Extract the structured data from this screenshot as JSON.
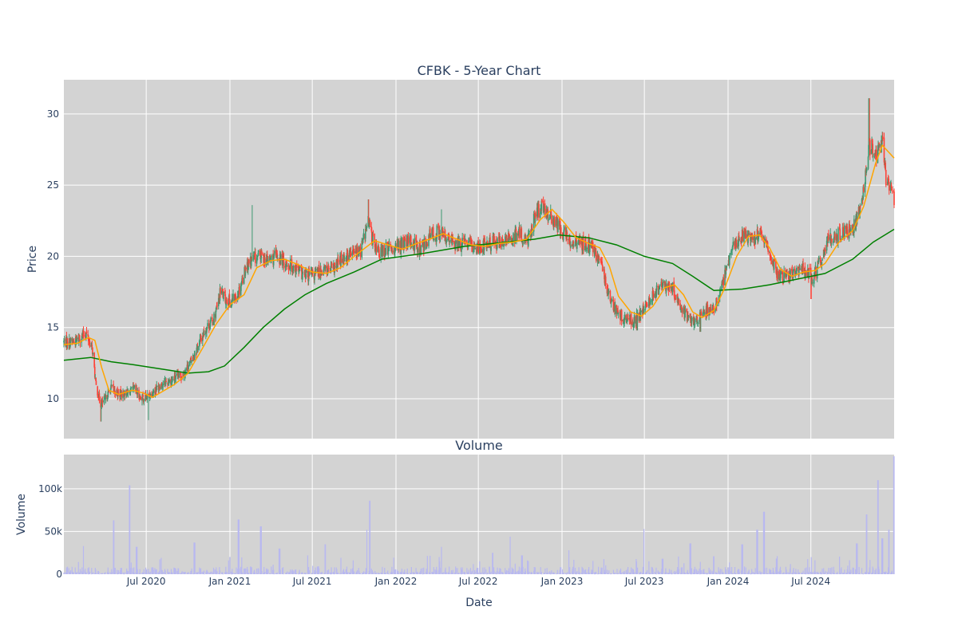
{
  "chart_data": {
    "type": "candlestick",
    "title": "CFBK - 5-Year Chart",
    "background_color": "#d3d3d3",
    "grid": true,
    "price_panel": {
      "ylabel": "Price",
      "ylim": [
        7.2,
        32.4
      ],
      "yticks": [
        10,
        15,
        20,
        25,
        30
      ],
      "increasing_color": "#3d9970",
      "decreasing_color": "#ff4136",
      "ma_short_color": "#ffa500",
      "ma_long_color": "#008000",
      "close_path": [
        [
          "2020-01-02",
          14.0
        ],
        [
          "2020-01-25",
          14.0
        ],
        [
          "2020-02-20",
          14.6
        ],
        [
          "2020-03-05",
          13.4
        ],
        [
          "2020-03-12",
          11.0
        ],
        [
          "2020-03-18",
          10.2
        ],
        [
          "2020-03-23",
          9.6
        ],
        [
          "2020-04-01",
          9.9
        ],
        [
          "2020-04-15",
          10.8
        ],
        [
          "2020-05-01",
          10.3
        ],
        [
          "2020-05-20",
          10.4
        ],
        [
          "2020-06-05",
          10.7
        ],
        [
          "2020-06-15",
          10.2
        ],
        [
          "2020-06-25",
          10.0
        ],
        [
          "2020-07-10",
          10.3
        ],
        [
          "2020-08-01",
          11.0
        ],
        [
          "2020-09-01",
          11.4
        ],
        [
          "2020-09-20",
          11.7
        ],
        [
          "2020-10-10",
          12.8
        ],
        [
          "2020-10-25",
          13.9
        ],
        [
          "2020-11-10",
          15.0
        ],
        [
          "2020-11-25",
          15.5
        ],
        [
          "2020-12-05",
          16.5
        ],
        [
          "2020-12-12",
          17.7
        ],
        [
          "2020-12-20",
          17.0
        ],
        [
          "2021-01-05",
          16.8
        ],
        [
          "2021-01-20",
          17.5
        ],
        [
          "2021-02-05",
          19.3
        ],
        [
          "2021-02-20",
          19.8
        ],
        [
          "2021-03-10",
          20.0
        ],
        [
          "2021-03-25",
          19.7
        ],
        [
          "2021-04-15",
          20.0
        ],
        [
          "2021-05-05",
          19.5
        ],
        [
          "2021-05-25",
          19.2
        ],
        [
          "2021-06-15",
          18.6
        ],
        [
          "2021-07-05",
          18.7
        ],
        [
          "2021-07-25",
          19.1
        ],
        [
          "2021-08-15",
          19.0
        ],
        [
          "2021-09-05",
          19.9
        ],
        [
          "2021-09-25",
          20.2
        ],
        [
          "2021-10-15",
          20.4
        ],
        [
          "2021-11-01",
          22.5
        ],
        [
          "2021-11-10",
          21.3
        ],
        [
          "2021-11-25",
          20.2
        ],
        [
          "2021-12-10",
          20.5
        ],
        [
          "2021-12-28",
          20.6
        ],
        [
          "2022-01-15",
          20.8
        ],
        [
          "2022-02-05",
          21.0
        ],
        [
          "2022-02-25",
          20.5
        ],
        [
          "2022-03-15",
          21.4
        ],
        [
          "2022-04-05",
          21.7
        ],
        [
          "2022-04-25",
          21.2
        ],
        [
          "2022-05-15",
          20.8
        ],
        [
          "2022-06-05",
          20.9
        ],
        [
          "2022-06-25",
          20.7
        ],
        [
          "2022-07-15",
          20.8
        ],
        [
          "2022-08-05",
          21.0
        ],
        [
          "2022-08-25",
          21.0
        ],
        [
          "2022-09-15",
          21.3
        ],
        [
          "2022-10-01",
          21.6
        ],
        [
          "2022-10-15",
          21.0
        ],
        [
          "2022-11-01",
          22.6
        ],
        [
          "2022-11-15",
          23.4
        ],
        [
          "2022-12-01",
          23.0
        ],
        [
          "2022-12-15",
          22.4
        ],
        [
          "2023-01-01",
          21.8
        ],
        [
          "2023-01-15",
          21.2
        ],
        [
          "2023-02-05",
          21.0
        ],
        [
          "2023-02-25",
          20.8
        ],
        [
          "2023-03-15",
          20.3
        ],
        [
          "2023-03-28",
          19.4
        ],
        [
          "2023-04-15",
          17.2
        ],
        [
          "2023-05-01",
          16.0
        ],
        [
          "2023-05-20",
          15.6
        ],
        [
          "2023-06-10",
          15.5
        ],
        [
          "2023-06-25",
          16.0
        ],
        [
          "2023-07-10",
          16.8
        ],
        [
          "2023-07-25",
          17.5
        ],
        [
          "2023-08-15",
          18.0
        ],
        [
          "2023-09-01",
          17.8
        ],
        [
          "2023-09-15",
          16.6
        ],
        [
          "2023-10-01",
          15.8
        ],
        [
          "2023-10-20",
          15.4
        ],
        [
          "2023-11-05",
          16.0
        ],
        [
          "2023-11-25",
          16.3
        ],
        [
          "2023-12-10",
          16.8
        ],
        [
          "2023-12-25",
          18.7
        ],
        [
          "2024-01-10",
          20.5
        ],
        [
          "2024-02-01",
          21.6
        ],
        [
          "2024-02-25",
          21.3
        ],
        [
          "2024-03-15",
          21.5
        ],
        [
          "2024-04-05",
          19.8
        ],
        [
          "2024-04-20",
          18.7
        ],
        [
          "2024-05-10",
          18.5
        ],
        [
          "2024-05-30",
          18.8
        ],
        [
          "2024-06-15",
          19.2
        ],
        [
          "2024-07-05",
          18.5
        ],
        [
          "2024-07-20",
          19.5
        ],
        [
          "2024-08-10",
          21.2
        ],
        [
          "2024-09-01",
          21.5
        ],
        [
          "2024-09-25",
          21.8
        ],
        [
          "2024-10-10",
          22.5
        ],
        [
          "2024-10-25",
          24.8
        ],
        [
          "2024-11-06",
          27.8
        ],
        [
          "2024-11-20",
          27.2
        ],
        [
          "2024-12-05",
          28.0
        ],
        [
          "2024-12-15",
          25.0
        ],
        [
          "2024-12-31",
          24.2
        ]
      ],
      "ma_short": [
        [
          "2020-01-02",
          13.8
        ],
        [
          "2020-02-01",
          13.9
        ],
        [
          "2020-02-25",
          14.3
        ],
        [
          "2020-03-10",
          14.1
        ],
        [
          "2020-03-25",
          12.2
        ],
        [
          "2020-04-10",
          10.6
        ],
        [
          "2020-05-01",
          10.3
        ],
        [
          "2020-06-01",
          10.6
        ],
        [
          "2020-06-25",
          10.4
        ],
        [
          "2020-07-15",
          10.1
        ],
        [
          "2020-08-05",
          10.5
        ],
        [
          "2020-09-01",
          11.0
        ],
        [
          "2020-10-01",
          11.8
        ],
        [
          "2020-11-01",
          13.5
        ],
        [
          "2020-12-01",
          15.2
        ],
        [
          "2021-01-01",
          16.6
        ],
        [
          "2021-02-01",
          17.3
        ],
        [
          "2021-03-01",
          19.2
        ],
        [
          "2021-04-01",
          19.7
        ],
        [
          "2021-05-01",
          19.8
        ],
        [
          "2021-06-01",
          19.4
        ],
        [
          "2021-07-01",
          18.9
        ],
        [
          "2021-08-01",
          18.8
        ],
        [
          "2021-09-01",
          19.2
        ],
        [
          "2021-10-01",
          20.0
        ],
        [
          "2021-11-15",
          21.1
        ],
        [
          "2021-12-15",
          20.8
        ],
        [
          "2022-01-15",
          20.5
        ],
        [
          "2022-02-15",
          20.9
        ],
        [
          "2022-03-15",
          21.2
        ],
        [
          "2022-04-15",
          21.6
        ],
        [
          "2022-05-15",
          21.2
        ],
        [
          "2022-06-15",
          20.8
        ],
        [
          "2022-07-15",
          20.7
        ],
        [
          "2022-08-15",
          20.9
        ],
        [
          "2022-09-15",
          21.0
        ],
        [
          "2022-10-15",
          21.2
        ],
        [
          "2022-11-15",
          22.6
        ],
        [
          "2022-12-10",
          23.3
        ],
        [
          "2023-01-05",
          22.4
        ],
        [
          "2023-02-01",
          21.3
        ],
        [
          "2023-03-01",
          20.9
        ],
        [
          "2023-03-25",
          20.6
        ],
        [
          "2023-04-15",
          19.3
        ],
        [
          "2023-05-05",
          17.2
        ],
        [
          "2023-06-01",
          16.1
        ],
        [
          "2023-06-25",
          15.8
        ],
        [
          "2023-07-20",
          16.5
        ],
        [
          "2023-08-15",
          17.8
        ],
        [
          "2023-09-05",
          18.0
        ],
        [
          "2023-09-25",
          17.3
        ],
        [
          "2023-10-15",
          16.1
        ],
        [
          "2023-11-05",
          15.7
        ],
        [
          "2023-12-01",
          16.2
        ],
        [
          "2023-12-25",
          17.8
        ],
        [
          "2024-01-20",
          20.0
        ],
        [
          "2024-02-15",
          21.4
        ],
        [
          "2024-03-10",
          21.5
        ],
        [
          "2024-04-01",
          20.6
        ],
        [
          "2024-04-25",
          19.1
        ],
        [
          "2024-05-20",
          18.6
        ],
        [
          "2024-06-15",
          18.9
        ],
        [
          "2024-07-10",
          19.0
        ],
        [
          "2024-08-01",
          19.5
        ],
        [
          "2024-09-01",
          21.0
        ],
        [
          "2024-10-01",
          21.8
        ],
        [
          "2024-10-25",
          23.5
        ],
        [
          "2024-11-20",
          26.5
        ],
        [
          "2024-12-05",
          27.8
        ],
        [
          "2024-12-31",
          26.9
        ]
      ],
      "ma_long": [
        [
          "2020-01-02",
          12.7
        ],
        [
          "2020-03-01",
          12.9
        ],
        [
          "2020-04-15",
          12.6
        ],
        [
          "2020-06-01",
          12.4
        ],
        [
          "2020-08-01",
          12.1
        ],
        [
          "2020-10-01",
          11.8
        ],
        [
          "2020-11-15",
          11.9
        ],
        [
          "2020-12-20",
          12.3
        ],
        [
          "2021-02-01",
          13.6
        ],
        [
          "2021-03-15",
          15.0
        ],
        [
          "2021-05-01",
          16.3
        ],
        [
          "2021-06-15",
          17.3
        ],
        [
          "2021-08-01",
          18.1
        ],
        [
          "2021-10-01",
          18.9
        ],
        [
          "2021-12-01",
          19.8
        ],
        [
          "2022-03-01",
          20.2
        ],
        [
          "2022-06-01",
          20.7
        ],
        [
          "2022-09-01",
          21.0
        ],
        [
          "2022-11-01",
          21.2
        ],
        [
          "2022-12-25",
          21.5
        ],
        [
          "2023-03-01",
          21.3
        ],
        [
          "2023-05-01",
          20.8
        ],
        [
          "2023-07-01",
          20.0
        ],
        [
          "2023-09-01",
          19.5
        ],
        [
          "2023-10-15",
          18.6
        ],
        [
          "2023-12-01",
          17.6
        ],
        [
          "2024-02-01",
          17.7
        ],
        [
          "2024-04-01",
          18.0
        ],
        [
          "2024-06-01",
          18.4
        ],
        [
          "2024-08-01",
          18.8
        ],
        [
          "2024-10-01",
          19.8
        ],
        [
          "2024-11-15",
          21.0
        ],
        [
          "2024-12-31",
          21.9
        ]
      ],
      "spikes": [
        [
          "2020-03-23",
          8.4
        ],
        [
          "2020-07-05",
          8.5
        ],
        [
          "2021-02-20",
          23.6
        ],
        [
          "2021-11-01",
          24.0
        ],
        [
          "2022-04-10",
          23.3
        ],
        [
          "2022-11-10",
          23.9
        ],
        [
          "2024-07-01",
          17.0
        ],
        [
          "2024-11-06",
          31.1
        ],
        [
          "2023-06-15",
          14.8
        ],
        [
          "2023-11-01",
          14.7
        ]
      ]
    },
    "volume_panel": {
      "subtitle": "Volume",
      "ylabel": "Volume",
      "ylim": [
        0,
        140000
      ],
      "yticks": [
        0,
        50000,
        100000
      ],
      "ytick_labels": [
        "0",
        "50k",
        "100k"
      ],
      "bar_color": "#b8b8f0",
      "spikes": [
        [
          "2020-02-15",
          33000
        ],
        [
          "2020-04-20",
          63000
        ],
        [
          "2020-05-25",
          104000
        ],
        [
          "2020-06-10",
          32000
        ],
        [
          "2020-10-15",
          37000
        ],
        [
          "2021-01-20",
          64000
        ],
        [
          "2021-03-10",
          56000
        ],
        [
          "2021-04-20",
          30000
        ],
        [
          "2021-06-20",
          22000
        ],
        [
          "2021-07-30",
          35000
        ],
        [
          "2021-10-30",
          52000
        ],
        [
          "2021-11-05",
          86000
        ],
        [
          "2022-04-10",
          32000
        ],
        [
          "2022-08-01",
          25000
        ],
        [
          "2022-09-10",
          44000
        ],
        [
          "2022-10-05",
          22000
        ],
        [
          "2023-01-15",
          28000
        ],
        [
          "2023-07-01",
          53000
        ],
        [
          "2023-08-10",
          18000
        ],
        [
          "2023-10-10",
          36000
        ],
        [
          "2023-12-01",
          21000
        ],
        [
          "2024-02-01",
          35000
        ],
        [
          "2024-03-05",
          52000
        ],
        [
          "2024-03-20",
          73000
        ],
        [
          "2024-10-10",
          36000
        ],
        [
          "2024-11-01",
          70000
        ],
        [
          "2024-11-25",
          110000
        ],
        [
          "2024-12-05",
          42000
        ],
        [
          "2024-12-20",
          52000
        ],
        [
          "2024-12-30",
          138000
        ]
      ]
    },
    "xaxis": {
      "label": "Date",
      "range": [
        "2020-01-02",
        "2024-12-31"
      ],
      "ticks": [
        "2020-07-01",
        "2021-01-01",
        "2021-07-01",
        "2022-01-01",
        "2022-07-01",
        "2023-01-01",
        "2023-07-01",
        "2024-01-01",
        "2024-07-01"
      ],
      "tick_labels": [
        "Jul 2020",
        "Jan 2021",
        "Jul 2021",
        "Jan 2022",
        "Jul 2022",
        "Jan 2023",
        "Jul 2023",
        "Jan 2024",
        "Jul 2024"
      ]
    }
  }
}
